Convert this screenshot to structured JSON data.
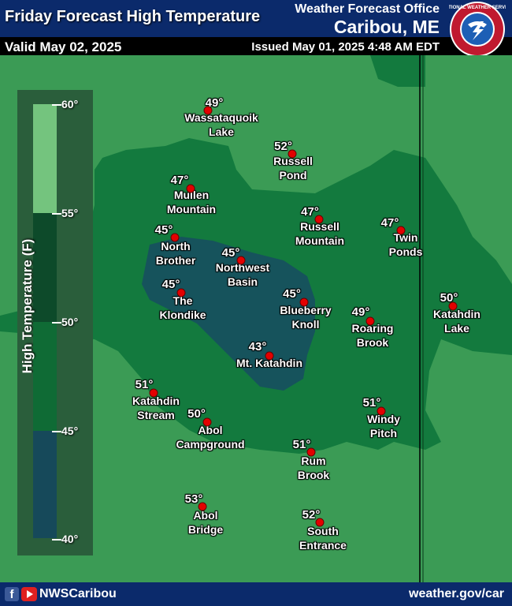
{
  "header": {
    "title": "Friday Forecast High Temperature",
    "valid": "Valid May 02, 2025",
    "office": "Weather Forecast Office",
    "city": "Caribou, ME",
    "issued": "Issued May 01, 2025 4:48 AM EDT",
    "logo_text": "NATIONAL WEATHER SERVICE"
  },
  "legend": {
    "title": "High Temperature (F)",
    "ticks": [
      "60°",
      "55°",
      "50°",
      "45°",
      "40°"
    ],
    "colors": {
      "55_60": "#74c47e",
      "50_55": "#0d4a2a",
      "45_50": "#0f6b35",
      "40_45": "#16495a"
    }
  },
  "points": [
    {
      "name_l1": "Wassataquoik",
      "name_l2": "Lake",
      "temp": "49°"
    },
    {
      "name_l1": "Russell",
      "name_l2": "Pond",
      "temp": "52°"
    },
    {
      "name_l1": "Mullen",
      "name_l2": "Mountain",
      "temp": "47°"
    },
    {
      "name_l1": "Russell",
      "name_l2": "Mountain",
      "temp": "47°"
    },
    {
      "name_l1": "Twin",
      "name_l2": "Ponds",
      "temp": "47°"
    },
    {
      "name_l1": "North",
      "name_l2": "Brother",
      "temp": "45°"
    },
    {
      "name_l1": "Northwest",
      "name_l2": "Basin",
      "temp": "45°"
    },
    {
      "name_l1": "The",
      "name_l2": "Klondike",
      "temp": "45°"
    },
    {
      "name_l1": "Blueberry",
      "name_l2": "Knoll",
      "temp": "45°"
    },
    {
      "name_l1": "Katahdin",
      "name_l2": "Lake",
      "temp": "50°"
    },
    {
      "name_l1": "Roaring",
      "name_l2": "Brook",
      "temp": "49°"
    },
    {
      "name_l1": "Mt. Katahdin",
      "name_l2": "",
      "temp": "43°"
    },
    {
      "name_l1": "Katahdin",
      "name_l2": "Stream",
      "temp": "51°"
    },
    {
      "name_l1": "Windy",
      "name_l2": "Pitch",
      "temp": "51°"
    },
    {
      "name_l1": "Abol",
      "name_l2": "Campground",
      "temp": "50°"
    },
    {
      "name_l1": "Rum",
      "name_l2": "Brook",
      "temp": "51°"
    },
    {
      "name_l1": "Abol",
      "name_l2": "Bridge",
      "temp": "53°"
    },
    {
      "name_l1": "South",
      "name_l2": "Entrance",
      "temp": "52°"
    }
  ],
  "footer": {
    "handle": "NWSCaribou",
    "url": "weather.gov/car"
  }
}
